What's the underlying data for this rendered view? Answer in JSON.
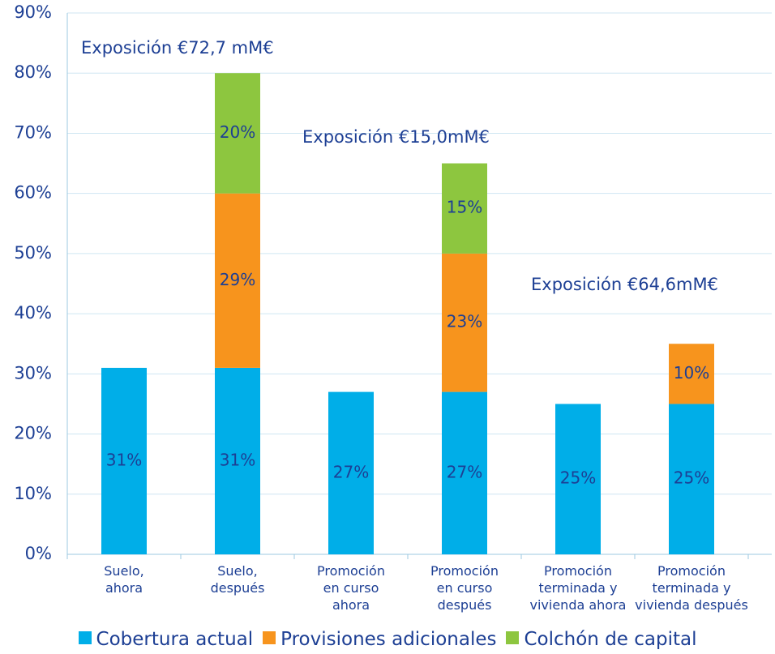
{
  "chart_data": {
    "type": "stacked_bar",
    "categories": [
      "Suelo,\nahora",
      "Suelo,\ndespués",
      "Promoción\nen curso\nahora",
      "Promoción\nen curso\ndespués",
      "Promoción\nterminada y\nvivienda ahora",
      "Promoción\nterminada y\nvivienda después"
    ],
    "series": [
      {
        "name": "Cobertura actual",
        "color": "#00aee8",
        "values": [
          31,
          31,
          27,
          27,
          25,
          25
        ],
        "value_labels": [
          "31%",
          "31%",
          "27%",
          "27%",
          "25%",
          "25%"
        ]
      },
      {
        "name": "Provisiones adicionales",
        "color": "#f7941d",
        "values": [
          null,
          29,
          null,
          23,
          null,
          10
        ],
        "value_labels": [
          null,
          "29%",
          null,
          "23%",
          null,
          "10%"
        ]
      },
      {
        "name": "Colchón de capital",
        "color": "#8dc63f",
        "values": [
          null,
          20,
          null,
          15,
          null,
          null
        ],
        "value_labels": [
          null,
          "20%",
          null,
          "15%",
          null,
          null
        ]
      }
    ],
    "annotations": [
      "Exposición €72,7 mM€",
      "Exposición €15,0mM€",
      "Exposición €64,6mM€"
    ],
    "ylim": [
      0,
      90
    ],
    "yticks": [
      {
        "value": 0,
        "label": "0%"
      },
      {
        "value": 10,
        "label": "10%"
      },
      {
        "value": 20,
        "label": "20%"
      },
      {
        "value": 30,
        "label": "30%"
      },
      {
        "value": 40,
        "label": "40%"
      },
      {
        "value": 50,
        "label": "50%"
      },
      {
        "value": 60,
        "label": "60%"
      },
      {
        "value": 70,
        "label": "70%"
      },
      {
        "value": 80,
        "label": "80%"
      },
      {
        "value": 90,
        "label": "90%"
      }
    ],
    "grid": true,
    "legend": "bottom"
  }
}
